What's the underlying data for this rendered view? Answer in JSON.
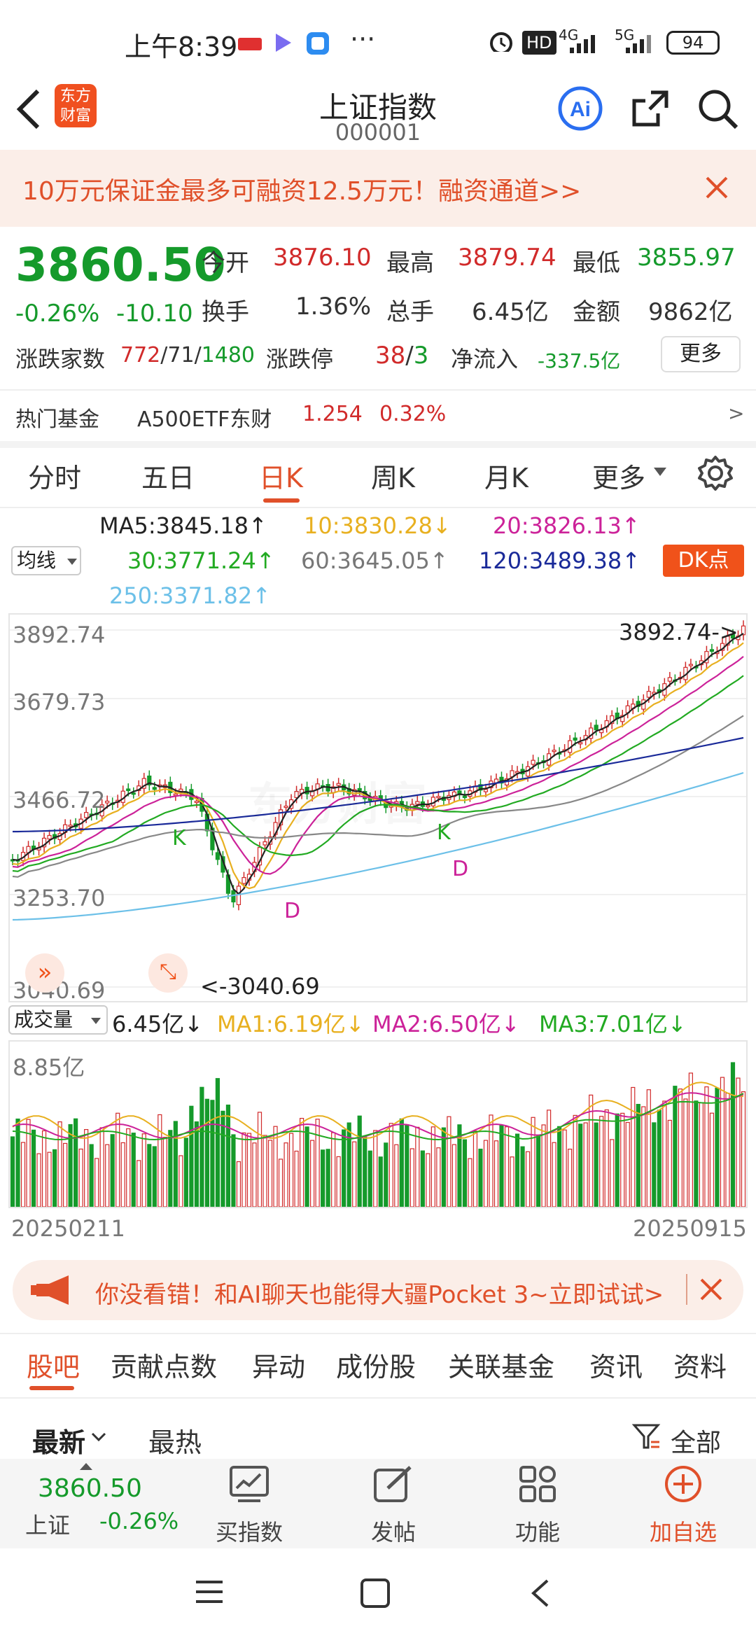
{
  "status_bar": {
    "time": "上午8:39",
    "battery": "94",
    "network_1": "4G",
    "network_2": "5G",
    "hd": "HD"
  },
  "header": {
    "title": "上证指数",
    "code": "000001",
    "logo_text_1": "东方",
    "logo_text_2": "财富"
  },
  "promo": {
    "text": "10万元保证金最多可融资12.5万元！融资通道>>"
  },
  "quote": {
    "price": "3860.50",
    "change_pct": "-0.26%",
    "change": "-10.10",
    "open_label": "今开",
    "open": "3876.10",
    "high_label": "最高",
    "high": "3879.74",
    "low_label": "最低",
    "low": "3855.97",
    "turnover_label": "换手",
    "turnover": "1.36%",
    "volume_label": "总手",
    "volume": "6.45亿",
    "amount_label": "金额",
    "amount": "9862亿",
    "updown_label": "涨跌家数",
    "up": "772",
    "flat": "71",
    "down": "1480",
    "limit_label": "涨跌停",
    "limit_up": "38",
    "limit_down": "3",
    "netflow_label": "净流入",
    "netflow": "-337.5亿",
    "more": "更多"
  },
  "hot_fund": {
    "label": "热门基金",
    "name": "A500ETF东财",
    "price": "1.254",
    "pct": "0.32%",
    "arrow": ">"
  },
  "ktabs": [
    "分时",
    "五日",
    "日K",
    "周K",
    "月K",
    "更多"
  ],
  "ma_lines": {
    "selector": "均线",
    "ma5": "MA5:3845.18↑",
    "ma10": "10:3830.28↓",
    "ma20": "20:3826.13↑",
    "ma30": "30:3771.24↑",
    "ma60": "60:3645.05↑",
    "ma120": "120:3489.38↑",
    "ma250": "250:3371.82↑",
    "dk": "DK点"
  },
  "chart_data": {
    "type": "line",
    "y_ticks": [
      "3892.74",
      "3679.73",
      "3466.72",
      "3253.70",
      "3040.69"
    ],
    "ylim": [
      3040.69,
      3892.74
    ],
    "x_start": "20250211",
    "x_end": "20250915",
    "max_label": "3892.74->",
    "min_label": "<-3040.69",
    "markers": [
      "K",
      "D",
      "K",
      "D"
    ],
    "colors": {
      "up": "#d12a2a",
      "down": "#159a2b",
      "ma5": "#222222",
      "ma10": "#e8b020",
      "ma20": "#cc2299",
      "ma30": "#22aa22",
      "ma60": "#888888",
      "ma120": "#1a2a99",
      "ma250": "#6cc0e8"
    }
  },
  "volume": {
    "selector": "成交量",
    "value": "6.45亿↓",
    "ma1": "MA1:6.19亿↓",
    "ma2": "MA2:6.50亿↓",
    "ma3": "MA3:7.01亿↓",
    "max": "8.85亿"
  },
  "ad": {
    "text": "你没看错！和AI聊天也能得大疆Pocket 3~立即试试>"
  },
  "bottom_tabs": [
    "股吧",
    "贡献点数",
    "异动",
    "成份股",
    "关联基金",
    "资讯",
    "资料"
  ],
  "filters": {
    "newest": "最新",
    "hottest": "最热",
    "all": "全部"
  },
  "bottom_bar": {
    "price": "3860.50",
    "name": "上证",
    "pct": "-0.26%",
    "buy": "买指数",
    "post": "发帖",
    "func": "功能",
    "add": "加自选"
  }
}
